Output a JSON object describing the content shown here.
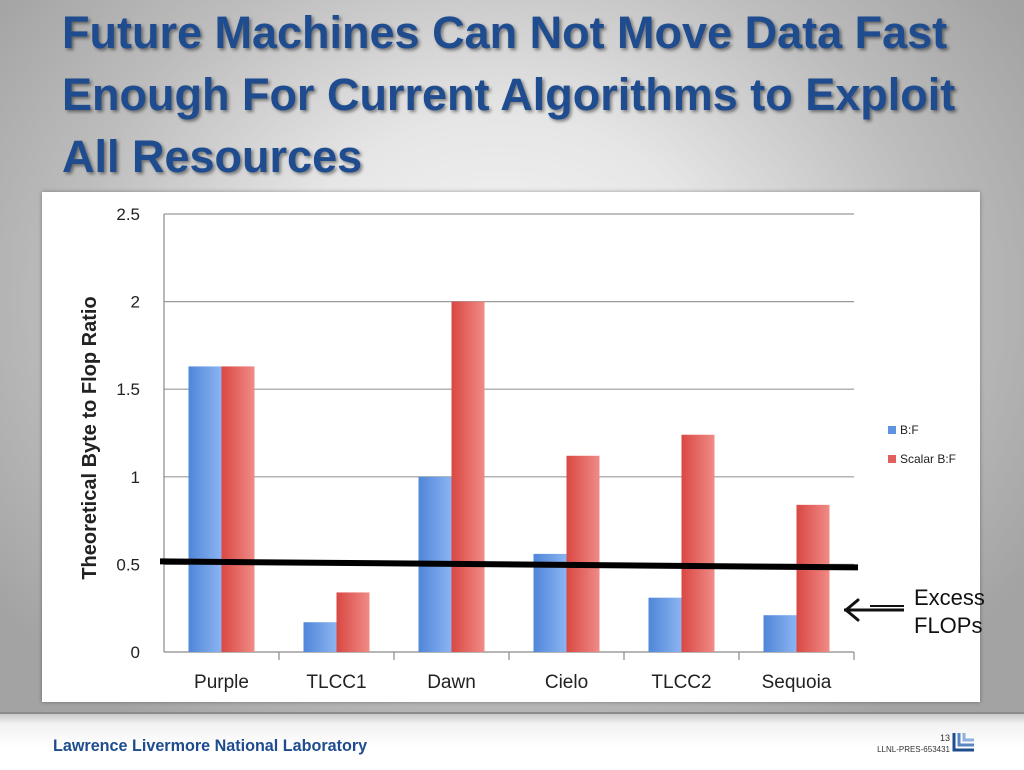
{
  "slide": {
    "title": "Future Machines Can Not Move Data Fast Enough For Current Algorithms to Exploit All Resources"
  },
  "chart_data": {
    "type": "bar",
    "categories": [
      "Purple",
      "TLCC1",
      "Dawn",
      "Cielo",
      "TLCC2",
      "Sequoia"
    ],
    "series": [
      {
        "name": "B:F",
        "values": [
          1.63,
          0.17,
          1.0,
          0.56,
          0.31,
          0.21
        ],
        "color": "#5e93e0"
      },
      {
        "name": "Scalar B:F",
        "values": [
          1.63,
          0.34,
          2.0,
          1.12,
          1.24,
          0.84
        ],
        "color": "#e0605b"
      }
    ],
    "xlabel": "",
    "ylabel": "Theoretical Byte to Flop Ratio",
    "ylim": [
      0,
      2.5
    ],
    "yticks": [
      0,
      0.5,
      1,
      1.5,
      2,
      2.5
    ],
    "ytick_labels": [
      "0",
      "0.5",
      "1",
      "1.5",
      "2",
      "2.5"
    ],
    "grid": true,
    "legend_position": "right",
    "reference_line": {
      "value": 0.5,
      "color": "#000000"
    }
  },
  "annotation": {
    "lines": [
      "Excess",
      "FLOPs"
    ],
    "icon": "left-arrow-icon"
  },
  "footer": {
    "lab_name": "Lawrence Livermore National Laboratory",
    "page_number": "13",
    "doc_id": "LLNL-PRES-653431",
    "logo_icon": "llnl-logo-icon"
  }
}
